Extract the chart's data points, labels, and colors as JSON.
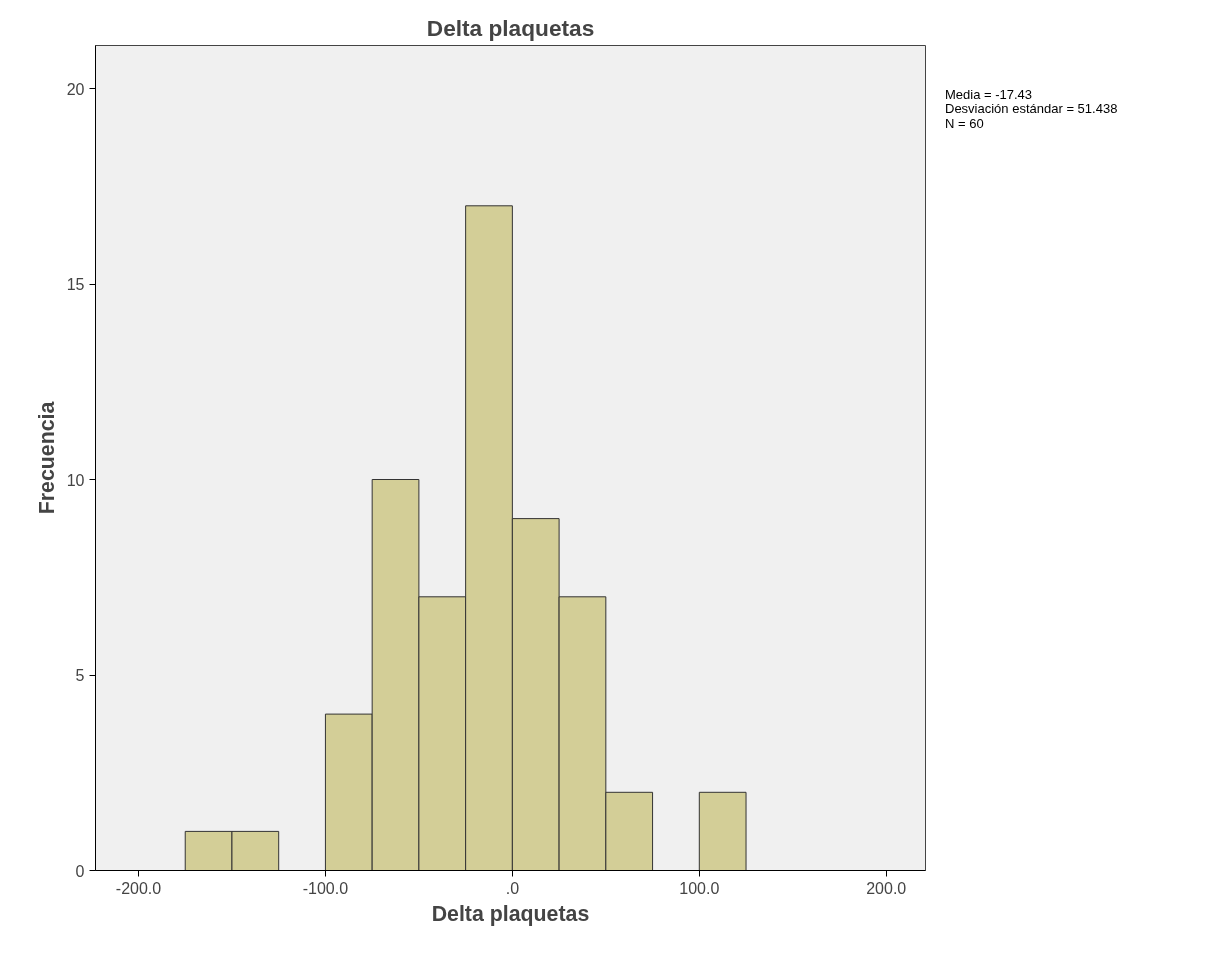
{
  "chart_data": {
    "type": "histogram",
    "title": "Delta plaquetas",
    "xlabel": "Delta plaquetas",
    "ylabel": "Frecuencia",
    "bins": [
      -175,
      -150,
      -125,
      -100,
      -75,
      -50,
      -25,
      0,
      25,
      50,
      75,
      100,
      125
    ],
    "values": [
      1,
      1,
      0,
      4,
      10,
      7,
      17,
      9,
      7,
      2,
      0,
      2
    ],
    "color": "#d3ce97",
    "xlim": [
      -223,
      221
    ],
    "ylim": [
      0,
      21.1
    ],
    "xticks": [
      {
        "value": -200,
        "label": "-200.0"
      },
      {
        "value": -100,
        "label": "-100.0"
      },
      {
        "value": 0,
        "label": ".0"
      },
      {
        "value": 100,
        "label": "100.0"
      },
      {
        "value": 200,
        "label": "200.0"
      }
    ],
    "yticks": [
      0,
      5,
      10,
      15,
      20
    ],
    "grid": false,
    "annotations": [
      "Media = -17.43",
      "Desviación estándar = 51.438",
      "N = 60"
    ]
  }
}
